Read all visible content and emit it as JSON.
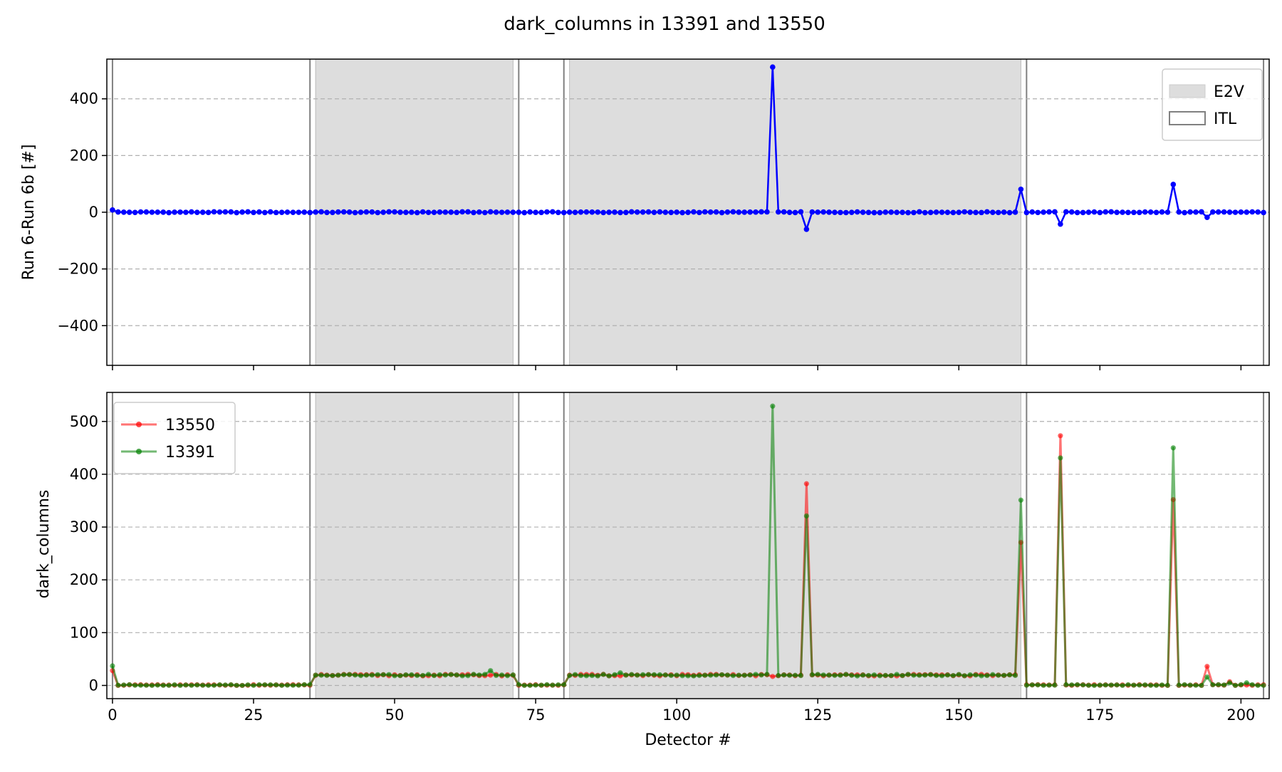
{
  "chart_data": {
    "type": "line",
    "title": "dark_columns in 13391 and 13550",
    "xlabel": "Detector #",
    "xlim": [
      -1,
      205
    ],
    "xticks": [
      0,
      25,
      50,
      75,
      100,
      125,
      150,
      175,
      200
    ],
    "x_tick_labels": [
      "0",
      "25",
      "50",
      "75",
      "100",
      "125",
      "150",
      "175",
      "200"
    ],
    "raft_boundaries": [
      0,
      35,
      72,
      80,
      162,
      204
    ],
    "e2v_regions": [
      [
        36,
        71
      ],
      [
        81,
        161
      ]
    ],
    "panels": [
      {
        "name": "difference",
        "ylabel": "Run 6-Run 6b [#]",
        "ylim": [
          -540,
          540
        ],
        "yticks": [
          -400,
          -200,
          0,
          200,
          400
        ],
        "y_tick_labels": [
          "−400",
          "−200",
          "0",
          "200",
          "400"
        ],
        "grid": true,
        "legend": {
          "placement": "upper right",
          "entries": [
            {
              "label": "E2V",
              "style": "filled",
              "color": "#dddddd"
            },
            {
              "label": "ITL",
              "style": "outline",
              "color": "#808080"
            }
          ]
        },
        "series": [
          {
            "color": "#0000ff",
            "x": [
              0,
              117,
              123,
              161,
              168,
              188,
              194
            ],
            "y": [
              8,
              512,
              -60,
              81,
              -42,
              98,
              -18
            ],
            "baseline": 0,
            "x_range": [
              0,
              204
            ]
          }
        ]
      },
      {
        "name": "values",
        "ylabel": "dark_columns",
        "ylim": [
          -25,
          555
        ],
        "yticks": [
          0,
          100,
          200,
          300,
          400,
          500
        ],
        "y_tick_labels": [
          "0",
          "100",
          "200",
          "300",
          "400",
          "500"
        ],
        "grid": true,
        "legend": {
          "placement": "upper left",
          "entries": [
            {
              "label": "13550",
              "style": "line-marker",
              "color": "#ff0000"
            },
            {
              "label": "13391",
              "style": "line-marker",
              "color": "#008000"
            }
          ]
        },
        "series": [
          {
            "name": "13550",
            "color": "#ff0000",
            "x": [
              0,
              117,
              123,
              161,
              168,
              188,
              194,
              198
            ],
            "y": [
              28,
              17,
              382,
              271,
              473,
              352,
              36,
              7
            ]
          },
          {
            "name": "13391",
            "color": "#008000",
            "x": [
              0,
              67,
              90,
              117,
              123,
              161,
              168,
              188,
              194,
              198,
              201
            ],
            "y": [
              37,
              28,
              24,
              529,
              321,
              351,
              431,
              450,
              16,
              5,
              5
            ]
          }
        ],
        "level_segments": [
          {
            "x_from": 0,
            "x_to": 35,
            "y": 0
          },
          {
            "x_from": 36,
            "x_to": 71,
            "y": 19
          },
          {
            "x_from": 72,
            "x_to": 80,
            "y": 0
          },
          {
            "x_from": 81,
            "x_to": 161,
            "y": 19
          },
          {
            "x_from": 162,
            "x_to": 204,
            "y": 0
          }
        ]
      }
    ]
  }
}
